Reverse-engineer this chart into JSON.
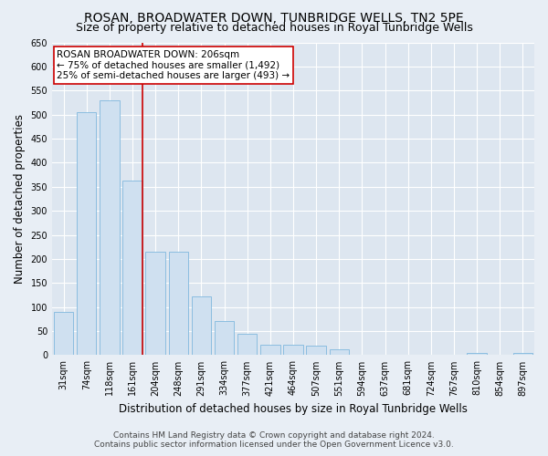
{
  "title": "ROSAN, BROADWATER DOWN, TUNBRIDGE WELLS, TN2 5PE",
  "subtitle": "Size of property relative to detached houses in Royal Tunbridge Wells",
  "xlabel": "Distribution of detached houses by size in Royal Tunbridge Wells",
  "ylabel": "Number of detached properties",
  "footer_line1": "Contains HM Land Registry data © Crown copyright and database right 2024.",
  "footer_line2": "Contains public sector information licensed under the Open Government Licence v3.0.",
  "categories": [
    "31sqm",
    "74sqm",
    "118sqm",
    "161sqm",
    "204sqm",
    "248sqm",
    "291sqm",
    "334sqm",
    "377sqm",
    "421sqm",
    "464sqm",
    "507sqm",
    "551sqm",
    "594sqm",
    "637sqm",
    "681sqm",
    "724sqm",
    "767sqm",
    "810sqm",
    "854sqm",
    "897sqm"
  ],
  "values": [
    90,
    505,
    530,
    362,
    215,
    215,
    122,
    70,
    45,
    22,
    22,
    20,
    13,
    0,
    0,
    0,
    0,
    0,
    5,
    0,
    5
  ],
  "bar_color": "#cfe0f0",
  "bar_edge_color": "#7fb8de",
  "vline_x_index": 3,
  "vline_color": "#cc0000",
  "annotation_title": "ROSAN BROADWATER DOWN: 206sqm",
  "annotation_line1": "← 75% of detached houses are smaller (1,492)",
  "annotation_line2": "25% of semi-detached houses are larger (493) →",
  "annotation_box_color": "white",
  "annotation_box_edge_color": "#cc0000",
  "ylim": [
    0,
    650
  ],
  "yticks": [
    0,
    50,
    100,
    150,
    200,
    250,
    300,
    350,
    400,
    450,
    500,
    550,
    600,
    650
  ],
  "background_color": "#e8eef5",
  "plot_background_color": "#dde6f0",
  "grid_color": "#ffffff",
  "title_fontsize": 10,
  "subtitle_fontsize": 9,
  "axis_label_fontsize": 8.5,
  "tick_fontsize": 7,
  "annotation_fontsize": 7.5,
  "footer_fontsize": 6.5
}
